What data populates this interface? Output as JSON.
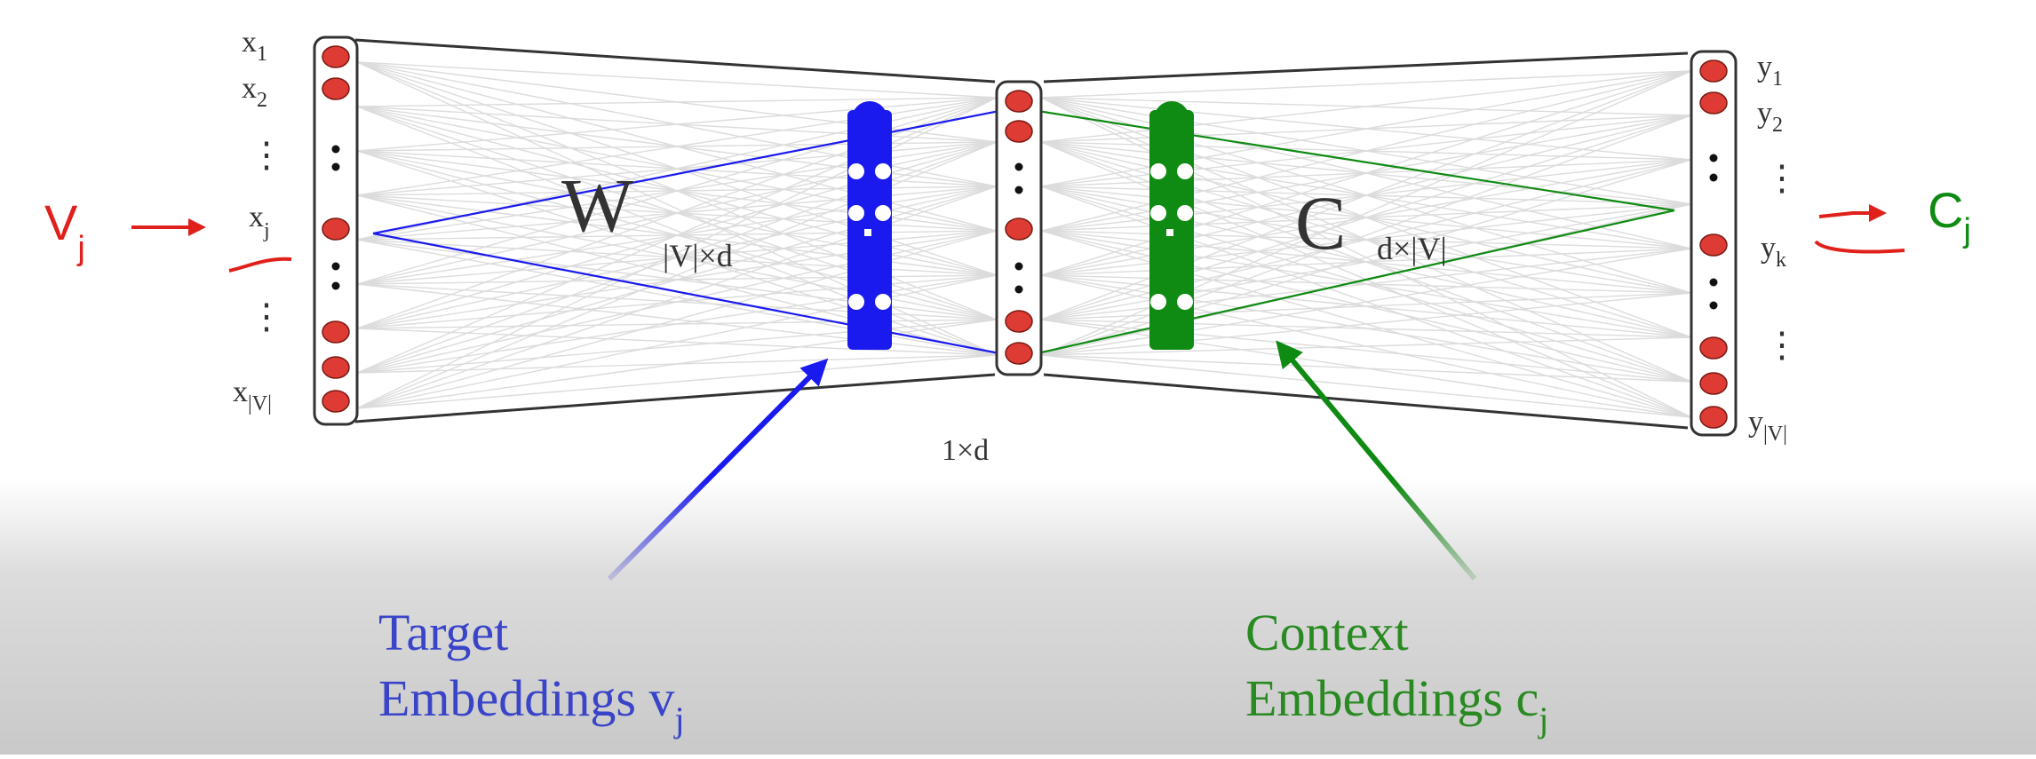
{
  "colors": {
    "node_red": "#dd3b33",
    "target_blue": "#1a1aee",
    "context_green": "#0f8a12",
    "frame_dark": "#333333",
    "fan_gray": "#dcdcdc",
    "annotation_red": "#e0201a"
  },
  "input_labels": {
    "x1_base": "x",
    "x1_sub": "1",
    "x2_base": "x",
    "x2_sub": "2",
    "xj_base": "x",
    "xj_sub": "j",
    "xv_base": "x",
    "xv_sub": "|V|",
    "ellipsis": "⋮"
  },
  "output_labels": {
    "y1_base": "y",
    "y1_sub": "1",
    "y2_base": "y",
    "y2_sub": "2",
    "yk_base": "y",
    "yk_sub": "k",
    "yv_base": "y",
    "yv_sub": "|V|",
    "ellipsis": "⋮"
  },
  "matrices": {
    "w_letter": "W",
    "w_dims": "|V|×d",
    "c_letter": "C",
    "c_dims": "d×|V|",
    "hidden_dims": "1×d"
  },
  "annotations": {
    "vj_base": "V",
    "vj_sub": "j",
    "cj_base": "C",
    "cj_sub": "j"
  },
  "captions": {
    "target_line1": "Target",
    "target_line2_base": "Embeddings v",
    "target_line2_sub": "j",
    "context_line1": "Context",
    "context_line2_base": "Embeddings c",
    "context_line2_sub": "j"
  }
}
